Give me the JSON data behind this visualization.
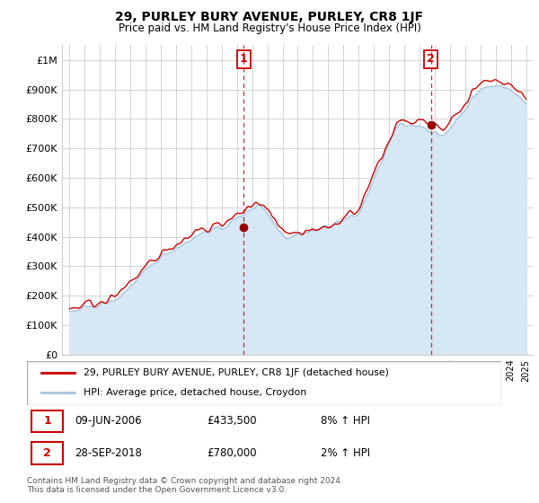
{
  "title": "29, PURLEY BURY AVENUE, PURLEY, CR8 1JF",
  "subtitle": "Price paid vs. HM Land Registry's House Price Index (HPI)",
  "ylim": [
    0,
    1050000
  ],
  "yticks": [
    0,
    100000,
    200000,
    300000,
    400000,
    500000,
    600000,
    700000,
    800000,
    900000,
    1000000
  ],
  "ytick_labels": [
    "£0",
    "£100K",
    "£200K",
    "£300K",
    "£400K",
    "£500K",
    "£600K",
    "£700K",
    "£800K",
    "£900K",
    "£1M"
  ],
  "sale1_year": 2006.44,
  "sale1_price": 433500,
  "sale2_year": 2018.74,
  "sale2_price": 780000,
  "hpi_color": "#a8c4e0",
  "hpi_fill_color": "#d6e8f5",
  "price_color": "#cc0000",
  "marker_color": "#cc0000",
  "grid_color": "#cccccc",
  "legend_label1": "29, PURLEY BURY AVENUE, PURLEY, CR8 1JF (detached house)",
  "legend_label2": "HPI: Average price, detached house, Croydon",
  "footer": "Contains HM Land Registry data © Crown copyright and database right 2024.\nThis data is licensed under the Open Government Licence v3.0."
}
